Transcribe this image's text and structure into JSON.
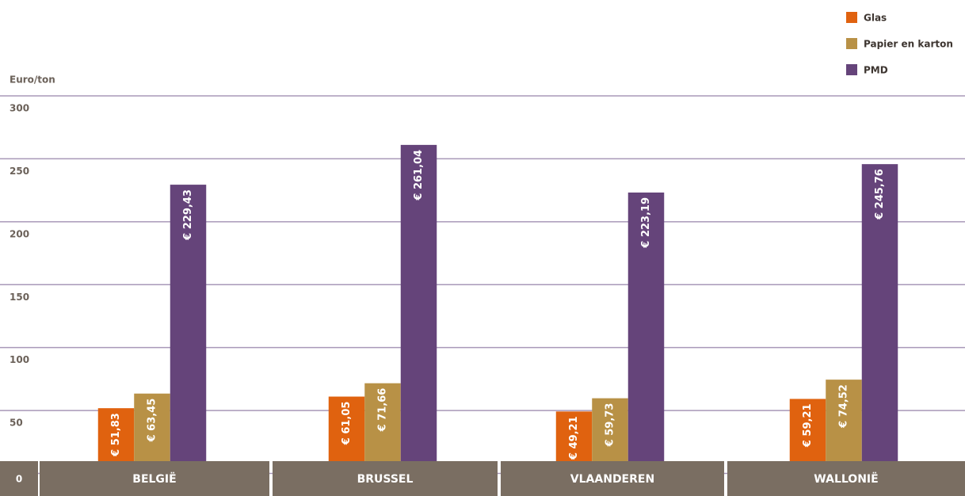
{
  "chart_data": {
    "type": "bar",
    "y_label": "Euro/ton",
    "categories": [
      "BELGIË",
      "BRUSSEL",
      "VLAANDEREN",
      "WALLONIË"
    ],
    "series": [
      {
        "name": "Glas",
        "color": "#e0620f",
        "values": [
          51.83,
          61.05,
          49.21,
          59.21
        ],
        "value_labels": [
          "€ 51,83",
          "€ 61,05",
          "€ 49,21",
          "€ 59,21"
        ]
      },
      {
        "name": "Papier en karton",
        "color": "#b89146",
        "values": [
          63.45,
          71.66,
          59.73,
          74.52
        ],
        "value_labels": [
          "€ 63,45",
          "€ 71,66",
          "€ 59,73",
          "€ 74,52"
        ]
      },
      {
        "name": "PMD",
        "color": "#65447a",
        "values": [
          229.43,
          261.04,
          223.19,
          245.76
        ],
        "value_labels": [
          "€ 229,43",
          "€ 261,04",
          "€ 223,19",
          "€ 245,76"
        ]
      }
    ],
    "ylim": [
      0,
      300
    ],
    "yticks": [
      0,
      50,
      100,
      150,
      200,
      250,
      300
    ],
    "grid": true,
    "legend": "top-right"
  }
}
